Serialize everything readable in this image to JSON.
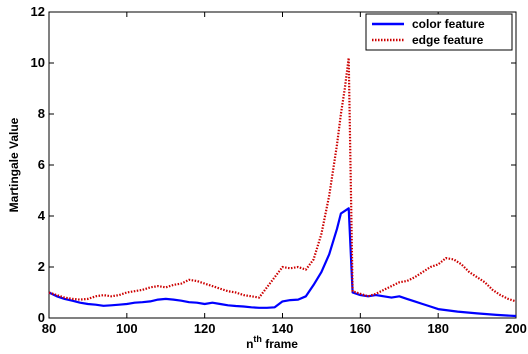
{
  "chart_data": {
    "type": "line",
    "xlabel_base": "n",
    "xlabel_sup": "th",
    "xlabel_rest": " frame",
    "ylabel": "Martingale Value",
    "xlim": [
      80,
      200
    ],
    "ylim": [
      0,
      12
    ],
    "xticks": [
      "80",
      "100",
      "120",
      "140",
      "160",
      "180",
      "200"
    ],
    "yticks": [
      "0",
      "2",
      "4",
      "6",
      "8",
      "10",
      "12"
    ],
    "grid": false,
    "legend_position": "top-right",
    "series": [
      {
        "name": "color feature",
        "color": "#0000ff",
        "style": "solid",
        "x": [
          80,
          82,
          84,
          86,
          88,
          90,
          92,
          94,
          96,
          98,
          100,
          102,
          104,
          106,
          108,
          110,
          112,
          114,
          116,
          118,
          120,
          122,
          124,
          126,
          128,
          130,
          132,
          134,
          136,
          138,
          140,
          142,
          144,
          146,
          148,
          150,
          152,
          154,
          155,
          156,
          157,
          158,
          160,
          162,
          164,
          166,
          168,
          170,
          172,
          174,
          176,
          178,
          180,
          185,
          190,
          195,
          200
        ],
        "y": [
          1.0,
          0.85,
          0.75,
          0.68,
          0.6,
          0.55,
          0.52,
          0.48,
          0.5,
          0.52,
          0.55,
          0.6,
          0.62,
          0.65,
          0.72,
          0.75,
          0.72,
          0.68,
          0.62,
          0.6,
          0.55,
          0.6,
          0.55,
          0.5,
          0.47,
          0.45,
          0.42,
          0.4,
          0.4,
          0.42,
          0.65,
          0.7,
          0.72,
          0.85,
          1.3,
          1.8,
          2.5,
          3.5,
          4.1,
          4.2,
          4.3,
          1.0,
          0.9,
          0.85,
          0.9,
          0.85,
          0.8,
          0.85,
          0.75,
          0.65,
          0.55,
          0.45,
          0.35,
          0.25,
          0.18,
          0.12,
          0.08
        ]
      },
      {
        "name": "edge feature",
        "color": "#cc0000",
        "style": "dotted",
        "x": [
          80,
          82,
          84,
          86,
          88,
          90,
          92,
          94,
          96,
          98,
          100,
          102,
          104,
          106,
          108,
          110,
          112,
          114,
          116,
          118,
          120,
          122,
          124,
          126,
          128,
          130,
          132,
          134,
          136,
          138,
          140,
          142,
          144,
          146,
          148,
          150,
          152,
          154,
          155,
          156,
          157,
          158,
          160,
          162,
          164,
          166,
          168,
          170,
          172,
          174,
          176,
          178,
          180,
          182,
          184,
          186,
          188,
          190,
          192,
          194,
          196,
          198,
          200
        ],
        "y": [
          1.0,
          0.9,
          0.8,
          0.75,
          0.72,
          0.75,
          0.85,
          0.9,
          0.85,
          0.9,
          1.0,
          1.05,
          1.1,
          1.2,
          1.25,
          1.2,
          1.3,
          1.35,
          1.5,
          1.45,
          1.35,
          1.25,
          1.15,
          1.05,
          1.0,
          0.9,
          0.85,
          0.8,
          1.2,
          1.6,
          2.0,
          1.95,
          2.0,
          1.9,
          2.3,
          3.3,
          4.8,
          6.8,
          8.0,
          9.0,
          10.2,
          1.05,
          0.95,
          0.85,
          0.95,
          1.1,
          1.25,
          1.4,
          1.45,
          1.6,
          1.8,
          2.0,
          2.1,
          2.35,
          2.3,
          2.1,
          1.8,
          1.6,
          1.4,
          1.1,
          0.9,
          0.75,
          0.65
        ]
      }
    ]
  }
}
